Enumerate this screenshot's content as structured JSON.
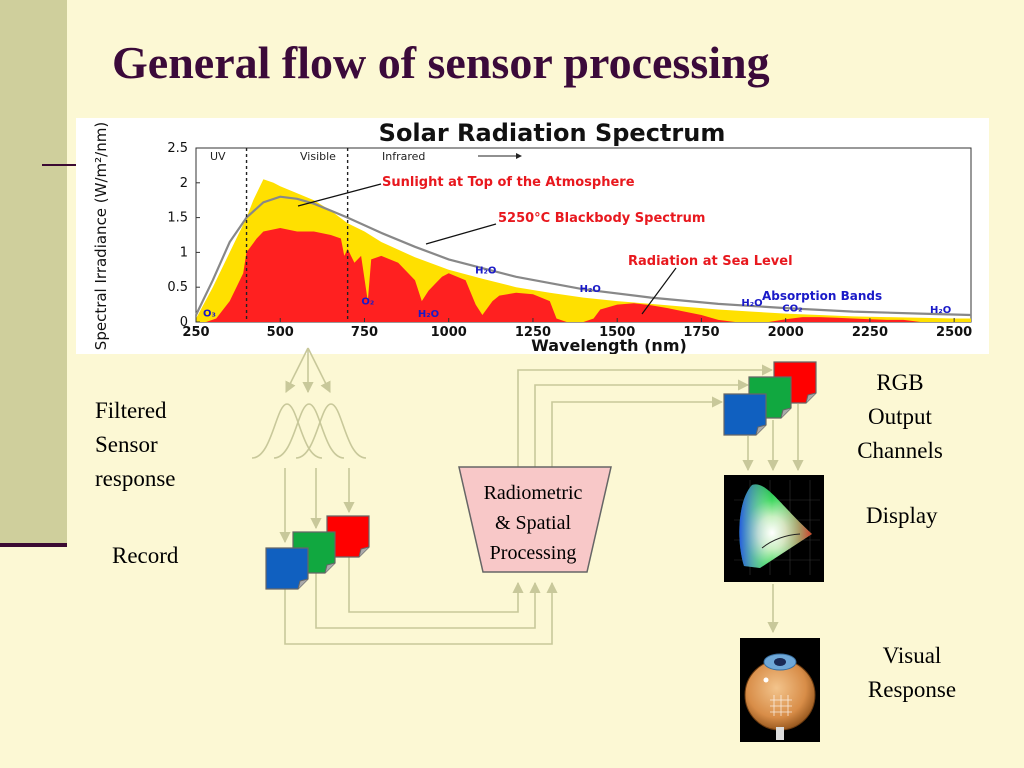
{
  "slide": {
    "title": "General flow of sensor processing",
    "colors": {
      "background": "#fcf8d4",
      "left_bar": "#cfcf9c",
      "title": "#3b0a3a",
      "accent_rule": "#3b0a32"
    }
  },
  "chart_data": {
    "type": "area",
    "title": "Solar Radiation Spectrum",
    "xlabel": "Wavelength (nm)",
    "ylabel": "Spectral Irradiance (W/m²/nm)",
    "xlim": [
      250,
      2550
    ],
    "ylim": [
      0,
      2.5
    ],
    "xticks": [
      "250",
      "500",
      "750",
      "1000",
      "1250",
      "1500",
      "1750",
      "2000",
      "2250",
      "2500"
    ],
    "xtick_values": [
      250,
      500,
      750,
      1000,
      1250,
      1500,
      1750,
      2000,
      2250,
      2500
    ],
    "yticks": [
      "0",
      "0.5",
      "1",
      "1.5",
      "2",
      "2.5"
    ],
    "ytick_values": [
      0,
      0.5,
      1,
      1.5,
      2,
      2.5
    ],
    "regions": [
      {
        "label": "UV",
        "from": 250,
        "to": 400
      },
      {
        "label": "Visible",
        "from": 400,
        "to": 700
      },
      {
        "label": "Infrared",
        "from": 700,
        "to": 2550
      }
    ],
    "region_boundaries": [
      400,
      700
    ],
    "series": [
      {
        "name": "Sunlight at Top of the Atmosphere",
        "color": "#ffe000",
        "x": [
          250,
          300,
          350,
          400,
          420,
          450,
          480,
          500,
          550,
          600,
          650,
          700,
          750,
          800,
          900,
          1000,
          1100,
          1200,
          1300,
          1400,
          1500,
          1600,
          1700,
          1800,
          1900,
          2000,
          2100,
          2200,
          2300,
          2400,
          2500,
          2550
        ],
        "y": [
          0.05,
          0.5,
          1.0,
          1.5,
          1.75,
          2.05,
          2.0,
          1.95,
          1.85,
          1.75,
          1.6,
          1.42,
          1.3,
          1.15,
          0.93,
          0.75,
          0.62,
          0.5,
          0.42,
          0.35,
          0.3,
          0.26,
          0.22,
          0.18,
          0.15,
          0.12,
          0.1,
          0.08,
          0.07,
          0.06,
          0.05,
          0.05
        ]
      },
      {
        "name": "Radiation at Sea Level",
        "color": "#ff2020",
        "x": [
          280,
          310,
          350,
          390,
          400,
          430,
          450,
          500,
          550,
          600,
          650,
          680,
          690,
          700,
          720,
          740,
          760,
          770,
          800,
          850,
          900,
          920,
          940,
          960,
          980,
          1000,
          1050,
          1080,
          1100,
          1130,
          1150,
          1200,
          1250,
          1300,
          1320,
          1350,
          1400,
          1430,
          1450,
          1500,
          1550,
          1600,
          1650,
          1700,
          1750,
          1800,
          1850,
          1900,
          1950,
          2000,
          2050,
          2100,
          2150,
          2200,
          2250,
          2300,
          2350,
          2400,
          2450,
          2500,
          2550
        ],
        "y": [
          0.0,
          0.05,
          0.3,
          0.7,
          1.0,
          1.2,
          1.3,
          1.35,
          1.3,
          1.3,
          1.25,
          1.2,
          0.95,
          1.05,
          0.85,
          0.95,
          0.3,
          0.9,
          0.95,
          0.85,
          0.6,
          0.3,
          0.45,
          0.55,
          0.65,
          0.7,
          0.6,
          0.25,
          0.1,
          0.3,
          0.38,
          0.42,
          0.4,
          0.3,
          0.05,
          0.0,
          0.0,
          0.05,
          0.18,
          0.25,
          0.27,
          0.24,
          0.2,
          0.15,
          0.1,
          0.03,
          0.0,
          0.0,
          0.0,
          0.04,
          0.07,
          0.07,
          0.06,
          0.05,
          0.04,
          0.03,
          0.03,
          0.0,
          0.0,
          0.0,
          0.0
        ]
      },
      {
        "name": "5250°C Blackbody Spectrum",
        "color": "#888888",
        "x": [
          250,
          300,
          350,
          400,
          450,
          500,
          550,
          600,
          650,
          700,
          800,
          900,
          1000,
          1200,
          1400,
          1600,
          1800,
          2000,
          2200,
          2400,
          2550
        ],
        "y": [
          0.1,
          0.6,
          1.15,
          1.5,
          1.72,
          1.8,
          1.77,
          1.7,
          1.6,
          1.5,
          1.28,
          1.08,
          0.9,
          0.65,
          0.47,
          0.35,
          0.26,
          0.2,
          0.15,
          0.12,
          0.1
        ]
      }
    ],
    "annotations": [
      {
        "text": "Sunlight at Top of the Atmosphere",
        "color": "#e8181e"
      },
      {
        "text": "5250°C Blackbody Spectrum",
        "color": "#e8181e"
      },
      {
        "text": "Radiation at Sea Level",
        "color": "#e8181e"
      },
      {
        "text": "Absorption Bands",
        "color": "#1a1ac8"
      }
    ],
    "absorption_labels": [
      {
        "text": "O₃",
        "x": 290,
        "y": 0.08
      },
      {
        "text": "O₂",
        "x": 760,
        "y": 0.25
      },
      {
        "text": "H₂O",
        "x": 940,
        "y": 0.07
      },
      {
        "text": "H₂O",
        "x": 1110,
        "y": 0.7
      },
      {
        "text": "H₂O",
        "x": 1420,
        "y": 0.43
      },
      {
        "text": "H₂O",
        "x": 1900,
        "y": 0.23
      },
      {
        "text": "CO₂",
        "x": 2020,
        "y": 0.15
      },
      {
        "text": "H₂O",
        "x": 2460,
        "y": 0.13
      }
    ]
  },
  "flow": {
    "filtered_label": [
      "Filtered",
      "Sensor",
      "response"
    ],
    "record_label": "Record",
    "processing_label": [
      "Radiometric",
      "& Spatial",
      "Processing"
    ],
    "rgb_label": [
      "RGB",
      "Output",
      "Channels"
    ],
    "display_label": "Display",
    "visual_label": [
      "Visual",
      "Response"
    ],
    "channel_colors": {
      "red": "#ff0000",
      "green": "#11a840",
      "blue": "#1060c0"
    },
    "processing_fill": "#f8c8c8",
    "connector_color": "#c8c89a"
  }
}
